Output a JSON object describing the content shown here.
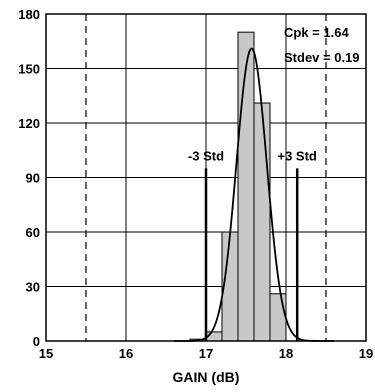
{
  "chart_data": {
    "type": "bar",
    "xlabel": "GAIN (dB)",
    "ylabel": "",
    "xlim": [
      15,
      19
    ],
    "ylim": [
      0,
      180
    ],
    "x_ticks": [
      "15",
      "16",
      "17",
      "18",
      "19"
    ],
    "y_ticks": [
      "0",
      "30",
      "60",
      "90",
      "120",
      "150",
      "180"
    ],
    "grid": true,
    "bins": [
      {
        "x0": 16.8,
        "x1": 17.0,
        "value": 1
      },
      {
        "x0": 17.0,
        "x1": 17.2,
        "value": 5
      },
      {
        "x0": 17.2,
        "x1": 17.4,
        "value": 60
      },
      {
        "x0": 17.4,
        "x1": 17.6,
        "value": 170
      },
      {
        "x0": 17.6,
        "x1": 17.8,
        "value": 131
      },
      {
        "x0": 17.8,
        "x1": 18.0,
        "value": 26
      }
    ],
    "fit_curve": {
      "type": "normal",
      "mean": 17.57,
      "stdev": 0.19,
      "peak": 161
    },
    "limit_lines": [
      15.5,
      18.5
    ],
    "markers": [
      {
        "x": 17.0,
        "label": "-3 Std"
      },
      {
        "x": 18.14,
        "label": "+3 Std"
      }
    ],
    "marker_height": 95,
    "annotations": [
      "Cpk = 1.64",
      "Stdev = 0.19"
    ],
    "colors": {
      "bar_fill": "#c8c8c8",
      "bar_stroke": "#000000",
      "grid": "#000000",
      "curve": "#000000"
    }
  }
}
